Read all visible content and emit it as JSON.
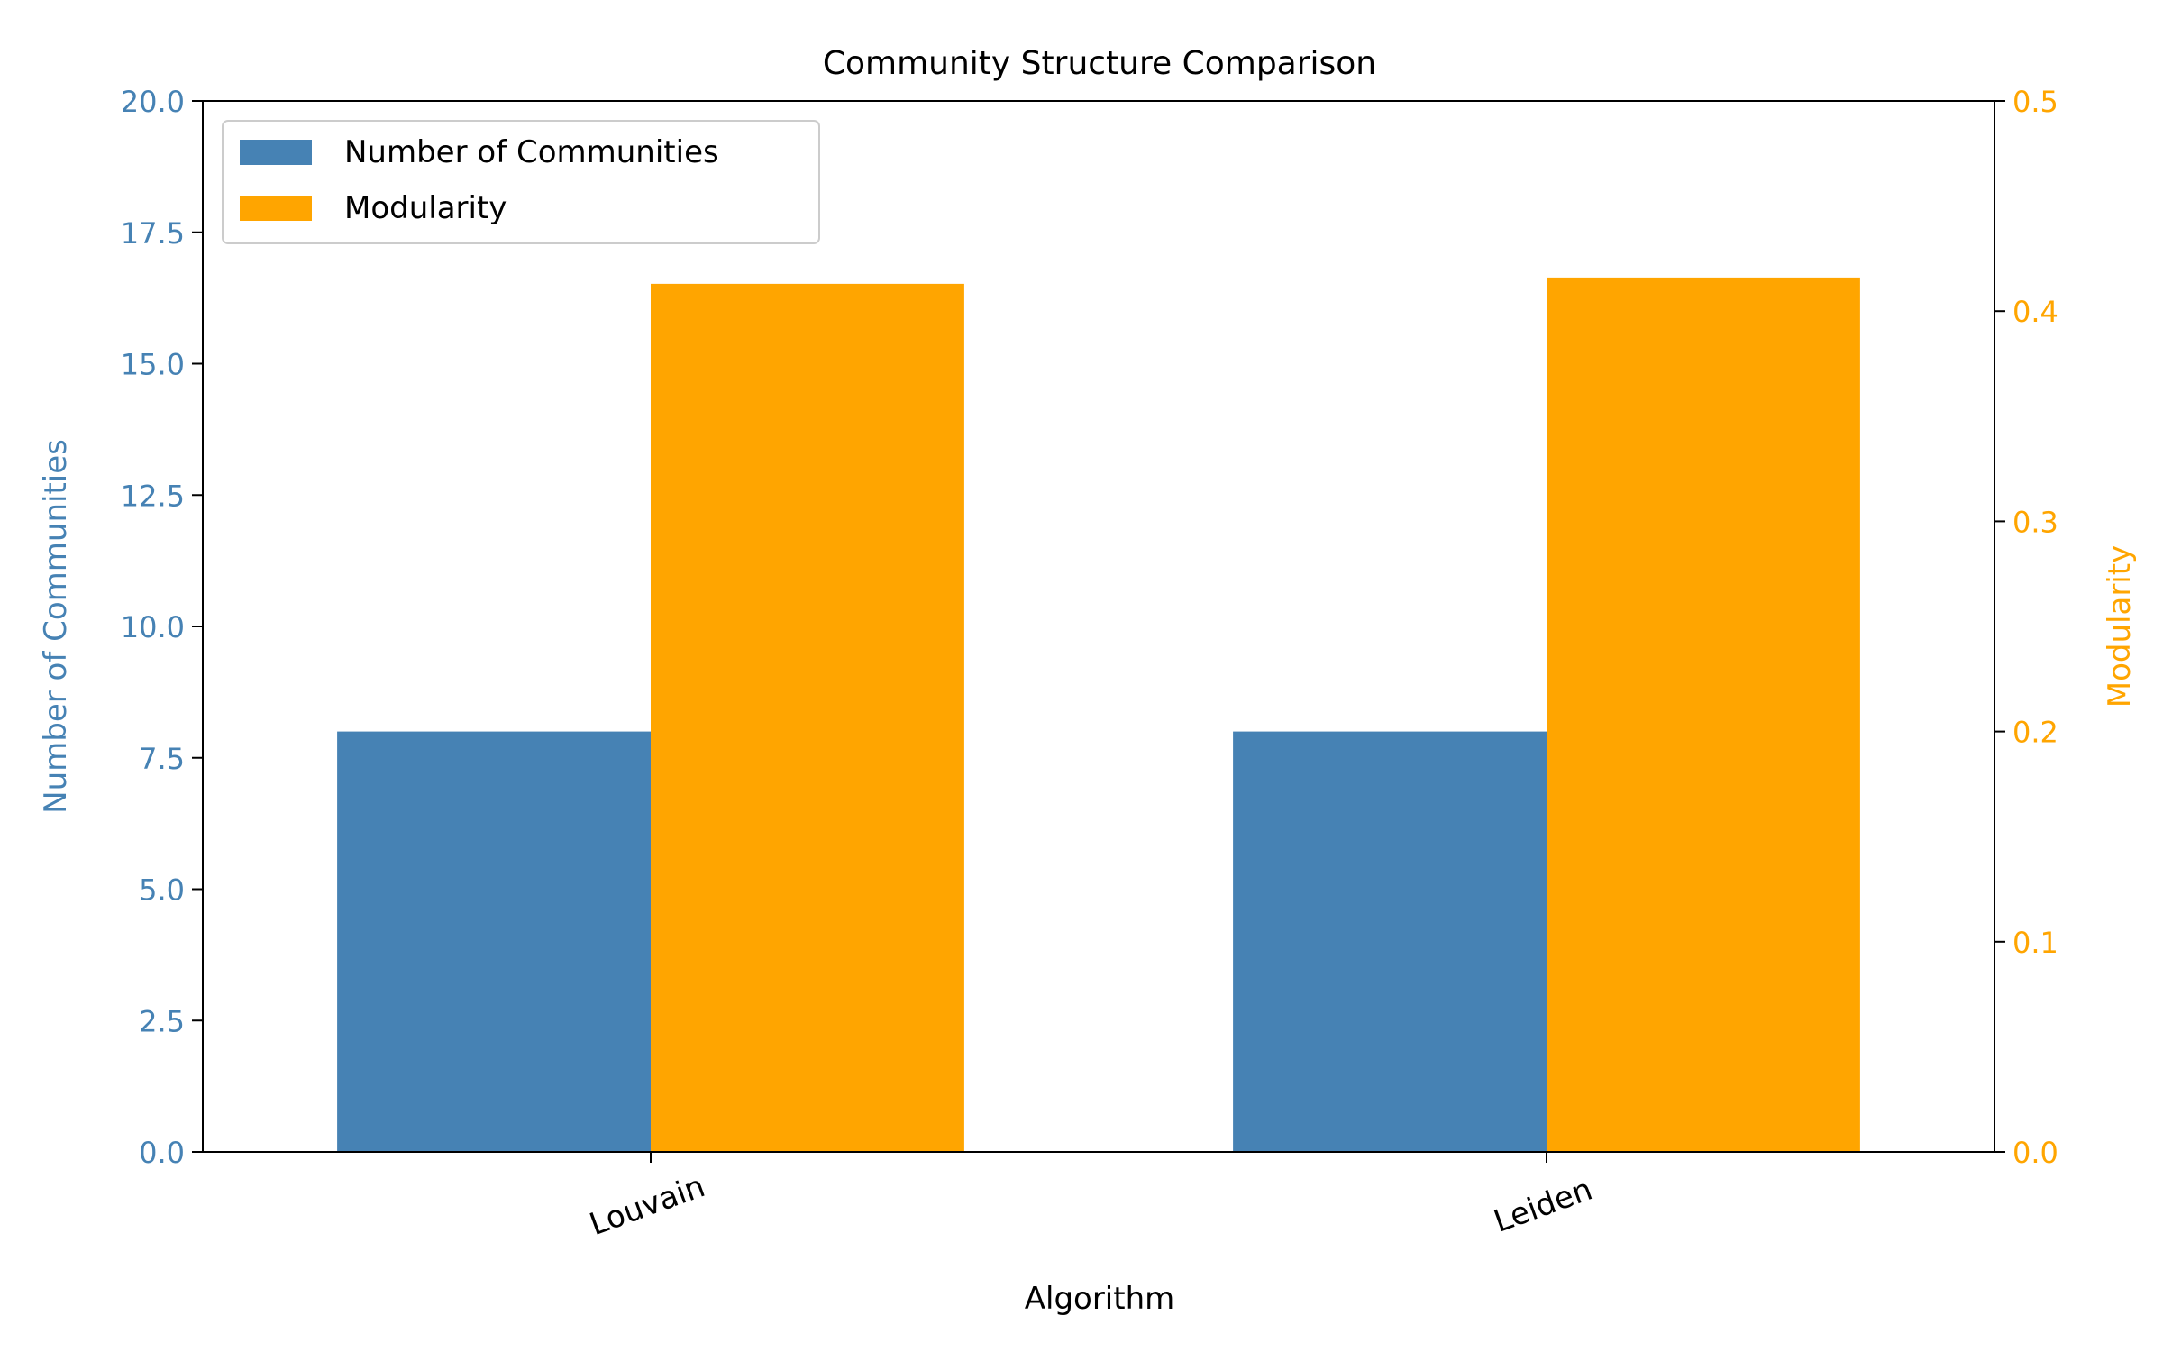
{
  "chart_data": {
    "type": "bar",
    "title": "Community Structure Comparison",
    "xlabel": "Algorithm",
    "categories": [
      "Louvain",
      "Leiden"
    ],
    "series": [
      {
        "name": "Number of Communities",
        "axis": "left",
        "color": "#4682b4",
        "values": [
          8,
          8
        ]
      },
      {
        "name": "Modularity",
        "axis": "right",
        "color": "#ffa500",
        "values": [
          0.413,
          0.416
        ]
      }
    ],
    "y_left": {
      "label": "Number of Communities",
      "ylim": [
        0,
        20
      ],
      "ticks": [
        "0.0",
        "2.5",
        "5.0",
        "7.5",
        "10.0",
        "12.5",
        "15.0",
        "17.5",
        "20.0"
      ],
      "color": "#4682b4"
    },
    "y_right": {
      "label": "Modularity",
      "ylim": [
        0,
        0.5
      ],
      "ticks": [
        "0.0",
        "0.1",
        "0.2",
        "0.3",
        "0.4",
        "0.5"
      ],
      "color": "#ffa500"
    },
    "legend_position": "top-left",
    "grid": false,
    "x_tick_rotation_deg": 20
  }
}
